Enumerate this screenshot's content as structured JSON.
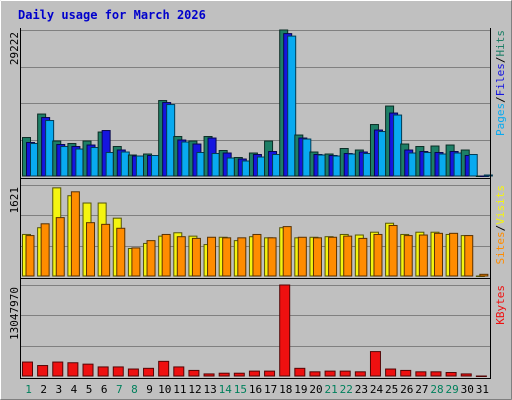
{
  "chart_data": {
    "type": "bar",
    "title": "Daily usage for March 2026",
    "categories": [
      "1",
      "2",
      "3",
      "4",
      "5",
      "6",
      "7",
      "8",
      "9",
      "10",
      "11",
      "12",
      "13",
      "14",
      "15",
      "16",
      "17",
      "18",
      "19",
      "20",
      "21",
      "22",
      "23",
      "24",
      "25",
      "26",
      "27",
      "28",
      "29",
      "30",
      "31"
    ],
    "weekend_days": [
      "1",
      "7",
      "8",
      "14",
      "15",
      "21",
      "22",
      "28",
      "29"
    ],
    "panels": [
      {
        "id": "hits-files-pages",
        "axis_label": "29222",
        "ylim": [
          0,
          29222
        ],
        "legend": [
          "Pages",
          "Files",
          "Hits"
        ],
        "grid": true,
        "series": [
          {
            "name": "Hits",
            "color": "#1d7f66",
            "values": [
              7700,
              12400,
              7000,
              6500,
              7000,
              8800,
              5900,
              4200,
              4400,
              15100,
              7900,
              7000,
              7900,
              5100,
              3700,
              4600,
              7000,
              29222,
              8200,
              4800,
              4400,
              5500,
              5200,
              10300,
              14000,
              6400,
              5900,
              6000,
              6200,
              5200,
              0
            ]
          },
          {
            "name": "Files",
            "color": "#1515df",
            "values": [
              6700,
              11700,
              6300,
              5900,
              6200,
              9100,
              5200,
              4000,
              4100,
              14700,
              7200,
              6400,
              7600,
              4600,
              3400,
              4300,
              4900,
              28500,
              7600,
              4300,
              4100,
              4500,
              4800,
              9200,
              12600,
              5200,
              4900,
              4700,
              4900,
              4100,
              0
            ]
          },
          {
            "name": "Pages",
            "color": "#08aaf0",
            "values": [
              6500,
              11100,
              5900,
              5400,
              5700,
              4700,
              4800,
              4000,
              4100,
              14300,
              6800,
              4700,
              4500,
              3600,
              3000,
              3800,
              4300,
              28000,
              7400,
              4200,
              4000,
              4400,
              4500,
              8900,
              12200,
              4600,
              4700,
              4400,
              4600,
              4300,
              200
            ]
          }
        ]
      },
      {
        "id": "visits-sites",
        "axis_label": "1621",
        "ylim": [
          0,
          1621
        ],
        "legend": [
          "Sites",
          "Visits"
        ],
        "grid": true,
        "series": [
          {
            "name": "Visits",
            "color": "#f4f410",
            "values": [
              740,
              860,
              1570,
              1430,
              1300,
              1300,
              1030,
              490,
              580,
              710,
              770,
              710,
              560,
              690,
              630,
              700,
              680,
              860,
              680,
              690,
              700,
              740,
              730,
              780,
              940,
              740,
              780,
              780,
              740,
              720,
              0
            ]
          },
          {
            "name": "Sites",
            "color": "#ff8c00",
            "values": [
              720,
              930,
              1040,
              1500,
              950,
              920,
              850,
              500,
              630,
              740,
              700,
              670,
              690,
              680,
              680,
              740,
              680,
              880,
              690,
              680,
              690,
              710,
              670,
              740,
              900,
              720,
              730,
              760,
              760,
              720,
              30
            ]
          }
        ]
      },
      {
        "id": "kbytes",
        "axis_label": "13047970",
        "ylim": [
          0,
          13047970
        ],
        "legend": [
          "KBytes"
        ],
        "grid": true,
        "series": [
          {
            "name": "KBytes",
            "color": "#ef1010",
            "values": [
              2000000,
              1500000,
              2000000,
              1900000,
              1700000,
              1300000,
              1300000,
              1000000,
              1100000,
              2100000,
              1300000,
              800000,
              300000,
              400000,
              400000,
              700000,
              700000,
              13047970,
              1100000,
              600000,
              700000,
              700000,
              600000,
              3500000,
              1000000,
              800000,
              600000,
              600000,
              500000,
              300000,
              0
            ]
          }
        ]
      }
    ],
    "colors": {
      "background": "#c0c0c0",
      "title": "#0000cc",
      "axis_text": "#000000",
      "weekday_text": "#000000",
      "weekend_text": "#00805c",
      "separator": "#000000",
      "grid": "#808080"
    }
  }
}
